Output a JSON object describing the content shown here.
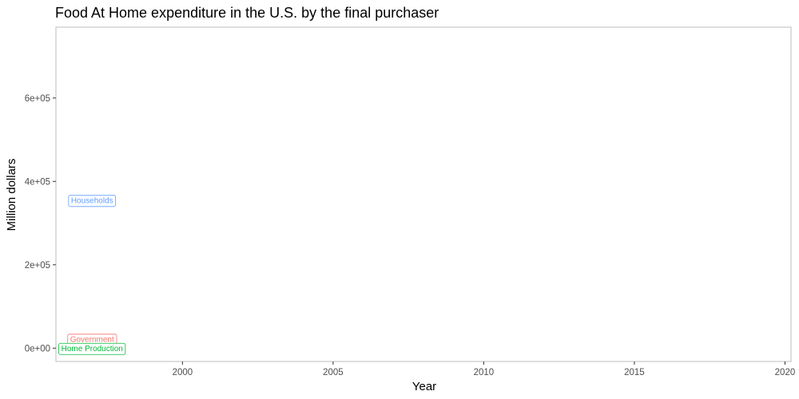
{
  "chart_data": {
    "type": "line",
    "title": "Food At Home expenditure in the U.S. by the final purchaser",
    "xlabel": "Year",
    "ylabel": "Million dollars",
    "xlim": [
      1995.8,
      2020.2
    ],
    "ylim": [
      -32000,
      770000
    ],
    "x_ticks": [
      2000,
      2005,
      2010,
      2015,
      2020
    ],
    "y_ticks": [
      0,
      200000,
      400000,
      600000
    ],
    "y_tick_labels": [
      "0e+00",
      "2e+05",
      "4e+05",
      "6e+05"
    ],
    "grid": false,
    "legend": "none",
    "series": [
      {
        "name": "Households",
        "color": "#619cff",
        "x": [
          1997
        ],
        "y": [
          355000
        ]
      },
      {
        "name": "Government",
        "color": "#f8766d",
        "x": [
          1997
        ],
        "y": [
          22000
        ]
      },
      {
        "name": "Home Production",
        "color": "#00ba38",
        "x": [
          1997
        ],
        "y": [
          0
        ]
      }
    ]
  }
}
